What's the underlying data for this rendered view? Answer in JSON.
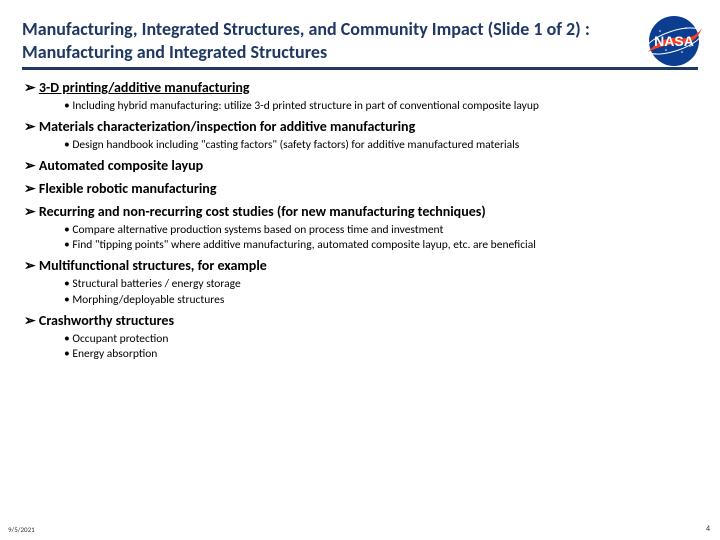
{
  "colors": {
    "title": "#1f3864",
    "rule": "#1f3864",
    "text": "#000000",
    "logo_blue": "#0b3d91",
    "logo_red": "#fc3d21"
  },
  "fonts": {
    "title_size": 18,
    "arrow_size": 14,
    "sub_size": 11.5
  },
  "title": "Manufacturing, Integrated Structures, and Community Impact (Slide 1 of 2) : Manufacturing and Integrated Structures",
  "items": [
    {
      "text": "3-D printing/additive manufacturing",
      "underline": true,
      "subs": [
        "Including hybrid manufacturing: utilize 3-d printed structure in part of conventional composite layup"
      ]
    },
    {
      "text": "Materials characterization/inspection for additive manufacturing",
      "subs": [
        "Design handbook including \"casting factors\" (safety factors) for additive manufactured materials"
      ]
    },
    {
      "text": "Automated composite layup",
      "subs": []
    },
    {
      "text": "Flexible robotic manufacturing",
      "subs": []
    },
    {
      "text": "Recurring and non-recurring cost studies (for new manufacturing techniques)",
      "subs": [
        "Compare alternative production systems based on process time and investment",
        "Find \"tipping points\" where additive manufacturing, automated composite layup, etc. are beneficial"
      ]
    },
    {
      "text": "Multifunctional structures, for example",
      "subs": [
        "Structural batteries / energy storage",
        "Morphing/deployable structures"
      ]
    },
    {
      "text": "Crashworthy structures",
      "subs": [
        "Occupant protection",
        "Energy absorption"
      ]
    }
  ],
  "footer": {
    "date": "9/5/2021",
    "page": "4"
  }
}
